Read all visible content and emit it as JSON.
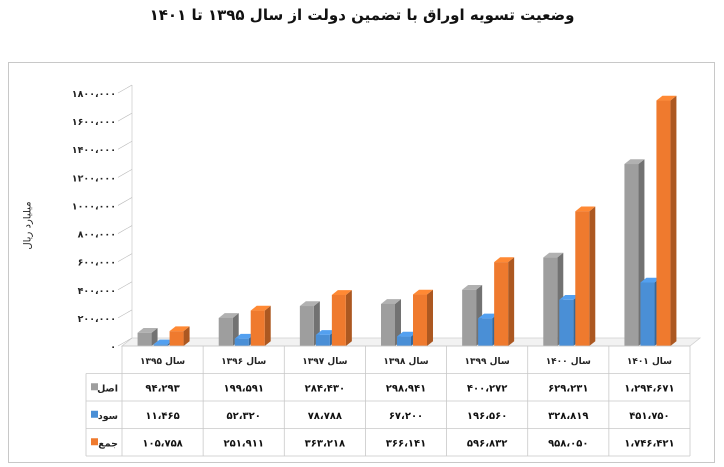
{
  "title": "وضعیت تسویه اوراق با تضمین دولت از سال ۱۳۹۵ تا ۱۴۰۱",
  "colors": {
    "asl": "#9e9e9e",
    "sood": "#4a8fd6",
    "jame": "#ef7a2e"
  },
  "chart_data": {
    "type": "bar",
    "ylabel": "میلیارد ریال",
    "ylim": [
      0,
      1800000
    ],
    "yticks": [
      "۰",
      "۲۰۰،۰۰۰",
      "۴۰۰،۰۰۰",
      "۶۰۰،۰۰۰",
      "۸۰۰،۰۰۰",
      "۱۰۰۰،۰۰۰",
      "۱۲۰۰،۰۰۰",
      "۱۴۰۰،۰۰۰",
      "۱۶۰۰،۰۰۰",
      "۱۸۰۰،۰۰۰"
    ],
    "ytick_values": [
      0,
      200000,
      400000,
      600000,
      800000,
      1000000,
      1200000,
      1400000,
      1600000,
      1800000
    ],
    "categories": [
      "سال ۱۳۹۵",
      "سال ۱۳۹۶",
      "سال ۱۳۹۷",
      "سال ۱۳۹۸",
      "سال ۱۳۹۹",
      "سال ۱۴۰۰",
      "سال ۱۴۰۱"
    ],
    "series": [
      {
        "name": "اصل",
        "color": "#9e9e9e",
        "values": [
          94293,
          199591,
          284430,
          298941,
          400272,
          629231,
          1294671
        ],
        "labels": [
          "۹۴،۲۹۳",
          "۱۹۹،۵۹۱",
          "۲۸۴،۴۳۰",
          "۲۹۸،۹۴۱",
          "۴۰۰،۲۷۲",
          "۶۲۹،۲۳۱",
          "۱،۲۹۴،۶۷۱"
        ]
      },
      {
        "name": "سود",
        "color": "#4a8fd6",
        "values": [
          11465,
          52320,
          78788,
          67200,
          196560,
          328819,
          451750
        ],
        "labels": [
          "۱۱،۴۶۵",
          "۵۲،۳۲۰",
          "۷۸،۷۸۸",
          "۶۷،۲۰۰",
          "۱۹۶،۵۶۰",
          "۳۲۸،۸۱۹",
          "۴۵۱،۷۵۰"
        ]
      },
      {
        "name": "جمع",
        "color": "#ef7a2e",
        "values": [
          105758,
          251911,
          363218,
          366141,
          596832,
          958050,
          1746421
        ],
        "labels": [
          "۱۰۵،۷۵۸",
          "۲۵۱،۹۱۱",
          "۳۶۳،۲۱۸",
          "۳۶۶،۱۴۱",
          "۵۹۶،۸۳۲",
          "۹۵۸،۰۵۰",
          "۱،۷۴۶،۴۲۱"
        ]
      }
    ],
    "grid": false,
    "legend": "table-left"
  }
}
